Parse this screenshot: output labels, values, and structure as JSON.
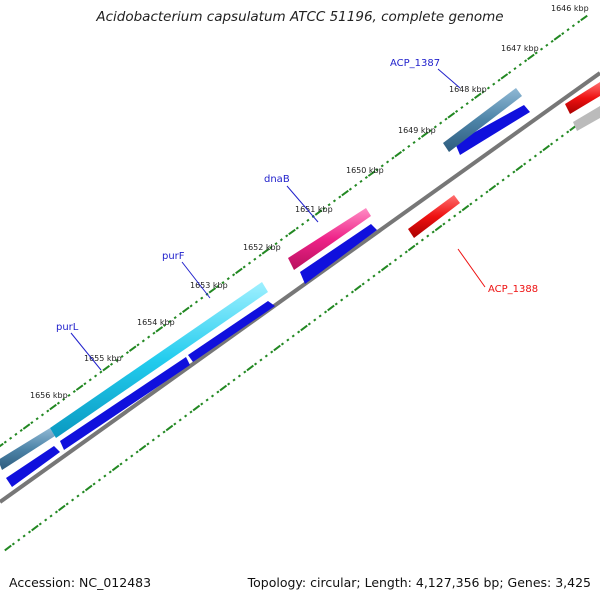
{
  "title": "Acidobacterium capsulatum ATCC 51196, complete genome",
  "footer": {
    "accession": "Accession: NC_012483",
    "summary": "Topology: circular; Length: 4,127,356 bp; Genes: 3,425"
  },
  "ticks": [
    "1646 kbp",
    "1647 kbp",
    "1648 kbp",
    "1649 kbp",
    "1650 kbp",
    "1651 kbp",
    "1652 kbp",
    "1653 kbp",
    "1654 kbp",
    "1655 kbp",
    "1656 kbp"
  ],
  "gene_labels": {
    "acp1387": "ACP_1387",
    "dnab": "dnaB",
    "purf": "purF",
    "purl": "purL",
    "acp1388": "ACP_1388"
  },
  "colors": {
    "forward_blue": "#0000dd",
    "cds_dark_blue": "#1010dd",
    "cyan": "#22ccee",
    "magenta": "#ee2288",
    "steel": "#4d84a8",
    "red": "#ee1111",
    "grey": "#bbbbbb",
    "backbone": "#777777",
    "tick_green": "#228822"
  }
}
